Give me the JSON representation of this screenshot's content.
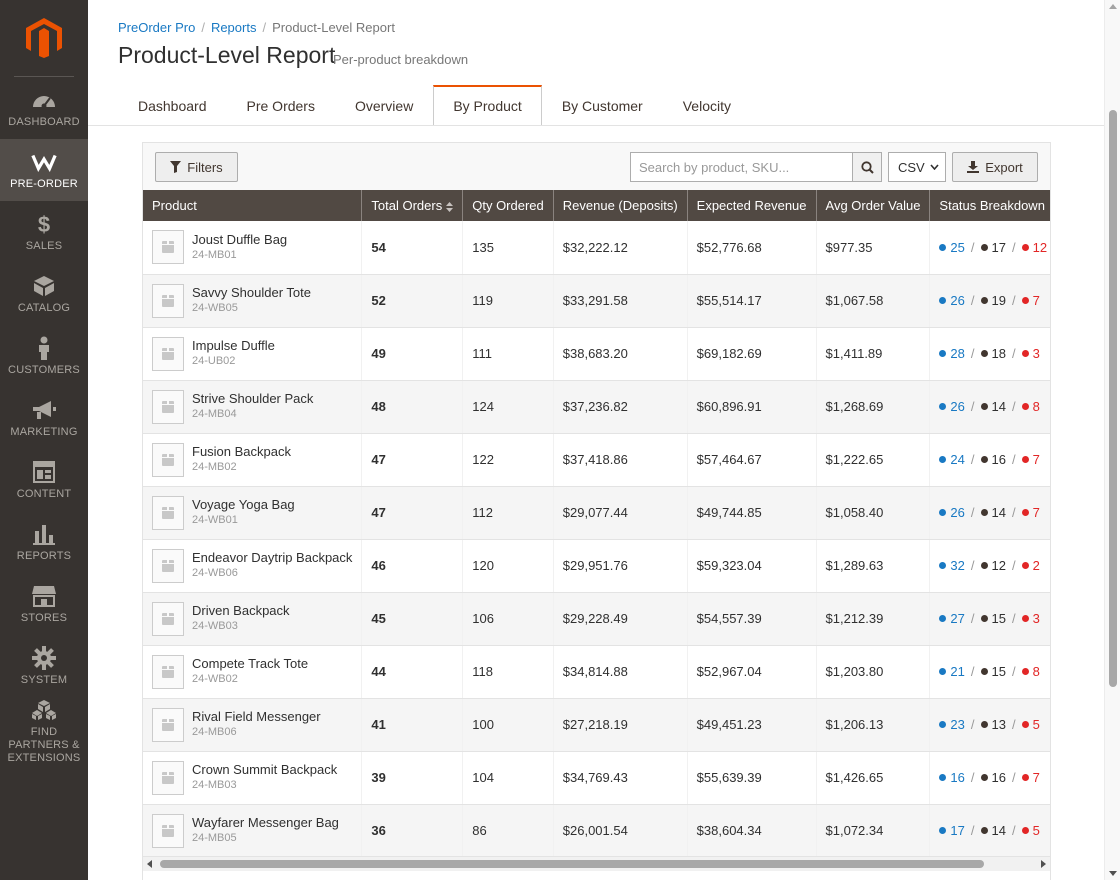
{
  "nav": {
    "logo_icon": "magento-logo-icon",
    "items": [
      {
        "key": "dashboard",
        "label": "DASHBOARD",
        "icon": "gauge-icon",
        "active": false
      },
      {
        "key": "pre-order",
        "label": "PRE-ORDER",
        "icon": "preorder-w-icon",
        "active": true
      },
      {
        "key": "sales",
        "label": "SALES",
        "icon": "dollar-icon",
        "active": false
      },
      {
        "key": "catalog",
        "label": "CATALOG",
        "icon": "cube-icon",
        "active": false
      },
      {
        "key": "customers",
        "label": "CUSTOMERS",
        "icon": "person-icon",
        "active": false
      },
      {
        "key": "marketing",
        "label": "MARKETING",
        "icon": "megaphone-icon",
        "active": false
      },
      {
        "key": "content",
        "label": "CONTENT",
        "icon": "layout-icon",
        "active": false
      },
      {
        "key": "reports",
        "label": "REPORTS",
        "icon": "bar-chart-icon",
        "active": false
      },
      {
        "key": "stores",
        "label": "STORES",
        "icon": "storefront-icon",
        "active": false
      },
      {
        "key": "system",
        "label": "SYSTEM",
        "icon": "gear-icon",
        "active": false
      },
      {
        "key": "partners",
        "label": "FIND PARTNERS & EXTENSIONS",
        "icon": "boxes-icon",
        "active": false
      }
    ]
  },
  "breadcrumb": {
    "items": [
      "PreOrder Pro",
      "Reports",
      "Product-Level Report"
    ],
    "separator": "/"
  },
  "page": {
    "title": "Product-Level Report",
    "subtitle": "Per-product breakdown"
  },
  "tabs": [
    {
      "label": "Dashboard",
      "active": false
    },
    {
      "label": "Pre Orders",
      "active": false
    },
    {
      "label": "Overview",
      "active": false
    },
    {
      "label": "By Product",
      "active": true
    },
    {
      "label": "By Customer",
      "active": false
    },
    {
      "label": "Velocity",
      "active": false
    }
  ],
  "toolbar": {
    "filters_label": "Filters",
    "search_placeholder": "Search by product, SKU...",
    "search_value": "",
    "format_selected": "CSV",
    "export_label": "Export"
  },
  "grid": {
    "columns": [
      "Product",
      "Total Orders",
      "Qty Ordered",
      "Revenue (Deposits)",
      "Expected Revenue",
      "Avg Order Value",
      "Status Breakdown"
    ],
    "status_colors": {
      "blue": "#1979c3",
      "dark": "#41362f",
      "red": "#e22626"
    },
    "rows": [
      {
        "name": "Joust Duffle Bag",
        "sku": "24-MB01",
        "orders": "54",
        "qty": "135",
        "revenue": "$32,222.12",
        "expected": "$52,776.68",
        "avg": "$977.35",
        "s1": "25",
        "s2": "17",
        "s3": "12"
      },
      {
        "name": "Savvy Shoulder Tote",
        "sku": "24-WB05",
        "orders": "52",
        "qty": "119",
        "revenue": "$33,291.58",
        "expected": "$55,514.17",
        "avg": "$1,067.58",
        "s1": "26",
        "s2": "19",
        "s3": "7"
      },
      {
        "name": "Impulse Duffle",
        "sku": "24-UB02",
        "orders": "49",
        "qty": "111",
        "revenue": "$38,683.20",
        "expected": "$69,182.69",
        "avg": "$1,411.89",
        "s1": "28",
        "s2": "18",
        "s3": "3"
      },
      {
        "name": "Strive Shoulder Pack",
        "sku": "24-MB04",
        "orders": "48",
        "qty": "124",
        "revenue": "$37,236.82",
        "expected": "$60,896.91",
        "avg": "$1,268.69",
        "s1": "26",
        "s2": "14",
        "s3": "8"
      },
      {
        "name": "Fusion Backpack",
        "sku": "24-MB02",
        "orders": "47",
        "qty": "122",
        "revenue": "$37,418.86",
        "expected": "$57,464.67",
        "avg": "$1,222.65",
        "s1": "24",
        "s2": "16",
        "s3": "7"
      },
      {
        "name": "Voyage Yoga Bag",
        "sku": "24-WB01",
        "orders": "47",
        "qty": "112",
        "revenue": "$29,077.44",
        "expected": "$49,744.85",
        "avg": "$1,058.40",
        "s1": "26",
        "s2": "14",
        "s3": "7"
      },
      {
        "name": "Endeavor Daytrip Backpack",
        "sku": "24-WB06",
        "orders": "46",
        "qty": "120",
        "revenue": "$29,951.76",
        "expected": "$59,323.04",
        "avg": "$1,289.63",
        "s1": "32",
        "s2": "12",
        "s3": "2"
      },
      {
        "name": "Driven Backpack",
        "sku": "24-WB03",
        "orders": "45",
        "qty": "106",
        "revenue": "$29,228.49",
        "expected": "$54,557.39",
        "avg": "$1,212.39",
        "s1": "27",
        "s2": "15",
        "s3": "3"
      },
      {
        "name": "Compete Track Tote",
        "sku": "24-WB02",
        "orders": "44",
        "qty": "118",
        "revenue": "$34,814.88",
        "expected": "$52,967.04",
        "avg": "$1,203.80",
        "s1": "21",
        "s2": "15",
        "s3": "8"
      },
      {
        "name": "Rival Field Messenger",
        "sku": "24-MB06",
        "orders": "41",
        "qty": "100",
        "revenue": "$27,218.19",
        "expected": "$49,451.23",
        "avg": "$1,206.13",
        "s1": "23",
        "s2": "13",
        "s3": "5"
      },
      {
        "name": "Crown Summit Backpack",
        "sku": "24-MB03",
        "orders": "39",
        "qty": "104",
        "revenue": "$34,769.43",
        "expected": "$55,639.39",
        "avg": "$1,426.65",
        "s1": "16",
        "s2": "16",
        "s3": "7"
      },
      {
        "name": "Wayfarer Messenger Bag",
        "sku": "24-MB05",
        "orders": "36",
        "qty": "86",
        "revenue": "$26,001.54",
        "expected": "$38,604.34",
        "avg": "$1,072.34",
        "s1": "17",
        "s2": "14",
        "s3": "5"
      }
    ]
  }
}
